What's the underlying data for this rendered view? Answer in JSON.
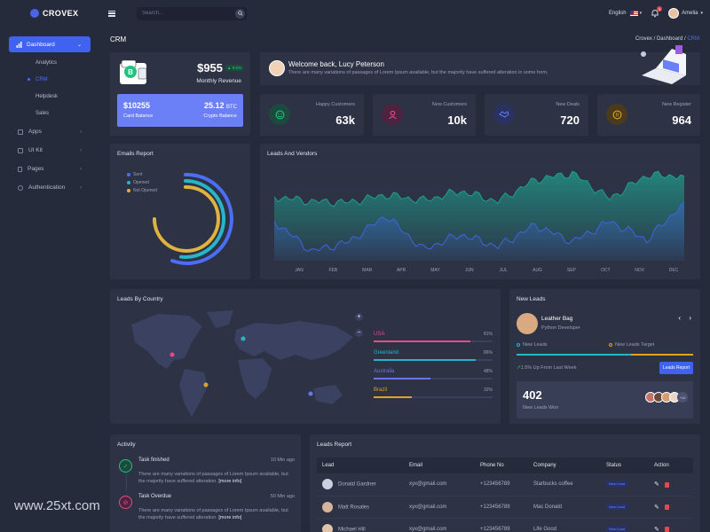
{
  "app": {
    "brand": "CROVEX"
  },
  "search": {
    "placeholder": "Search..."
  },
  "topbar": {
    "language": "English",
    "notifications": "3",
    "user_name": "Amelia"
  },
  "sidebar": {
    "dashboard": "Dashboard",
    "subitems": [
      "Analytics",
      "CRM",
      "Helpdesk",
      "Sales"
    ],
    "items": [
      "Apps",
      "UI Kit",
      "Pages",
      "Authentication"
    ]
  },
  "page": {
    "title": "CRM",
    "breadcrumb": [
      "Crovex",
      "Dashboard",
      "CRM"
    ]
  },
  "revenue": {
    "amount": "$955",
    "change": "8.5%",
    "label": "Monthly Revenue",
    "card_balance": "$10255",
    "card_balance_label": "Card Balance",
    "crypto_balance": "25.12",
    "crypto_unit": "BTC",
    "crypto_balance_label": "Crypto Balance"
  },
  "welcome": {
    "title": "Welcome back, Lucy Peterson",
    "text": "There are many variations of passages of Lorem Ipsum available, but the majority have suffered alteration in some form."
  },
  "stats": [
    {
      "label": "Happy Customers",
      "value": "63k",
      "color": "#23c27f",
      "icon": "smile-icon"
    },
    {
      "label": "New Customers",
      "value": "10k",
      "color": "#e84a8a",
      "icon": "user-icon"
    },
    {
      "label": "New Deals",
      "value": "720",
      "color": "#6478f5",
      "icon": "handshake-icon"
    },
    {
      "label": "New Register",
      "value": "964",
      "color": "#e3a31d",
      "icon": "coin-icon"
    }
  ],
  "emails": {
    "title": "Emails Report",
    "legend": [
      "Sent",
      "Opened",
      "Not Opened"
    ],
    "colors": [
      "#4c6ef5",
      "#27b6c9",
      "#e0b33f"
    ]
  },
  "leads_chart": {
    "title": "Leads And Vendors"
  },
  "chart_data": {
    "type": "area",
    "categories": [
      "JAN",
      "FEB",
      "MAR",
      "APR",
      "MAY",
      "JUN",
      "JUL",
      "AUG",
      "SEP",
      "OCT",
      "NOV",
      "DEC"
    ],
    "series": [
      {
        "values": [
          0.68,
          0.63,
          0.62,
          0.7,
          0.64,
          0.74,
          0.63,
          0.86,
          0.93,
          0.66,
          0.91,
          0.9
        ]
      },
      {
        "values": [
          0.42,
          0.1,
          0.2,
          0.48,
          0.12,
          0.28,
          0.15,
          0.38,
          0.2,
          0.42,
          0.22,
          0.62
        ]
      }
    ],
    "colors": [
      "#1f9e8e",
      "#3f64e0"
    ]
  },
  "country": {
    "title": "Leads By Country",
    "rows": [
      {
        "name": "USA",
        "pct": "81%",
        "fill": 0.81,
        "color": "#e84a8a"
      },
      {
        "name": "Greenland",
        "pct": "86%",
        "fill": 0.86,
        "color": "#27b6c9"
      },
      {
        "name": "Australia",
        "pct": "48%",
        "fill": 0.48,
        "color": "#6478f5"
      },
      {
        "name": "Brazil",
        "pct": "32%",
        "fill": 0.32,
        "color": "#e3a31d"
      }
    ]
  },
  "new_leads": {
    "title": "New Leads",
    "person": "Leather Bag",
    "role": "Python Developer",
    "legend": [
      "New Leads",
      "New Leads Target"
    ],
    "growth": "1.5% Up From Last Week",
    "button": "Leads Report",
    "count": "402",
    "count_label": "New Leads Won",
    "more": "+10"
  },
  "activity": {
    "title": "Activity",
    "items": [
      {
        "title": "Task finished",
        "time": "10 Min ago",
        "text": "There are many variations of passages of Lorem Ipsum available, but the majority have suffered alteration.",
        "more": "[more info]"
      },
      {
        "title": "Task Overdue",
        "time": "50 Min ago",
        "text": "There are many variations of passages of Lorem Ipsum available, but the majority have suffered alteration.",
        "more": "[more info]"
      }
    ]
  },
  "lead_report": {
    "title": "Leads Report",
    "headers": [
      "Lead",
      "Email",
      "Phone No",
      "Company",
      "Status",
      "Action"
    ],
    "rows": [
      {
        "lead": "Donald Gardner",
        "email": "xyx@gmail.com",
        "phone": "+123456789",
        "company": "Starbucks coffee",
        "status": "New Lead"
      },
      {
        "lead": "Matt Rosales",
        "email": "xyx@gmail.com",
        "phone": "+123456789",
        "company": "Mac Donald",
        "status": "New Lead"
      },
      {
        "lead": "Michael Hill",
        "email": "xyx@gmail.com",
        "phone": "+123456789",
        "company": "Life Good",
        "status": "New Lead"
      }
    ]
  },
  "watermark": "www.25xt.com"
}
